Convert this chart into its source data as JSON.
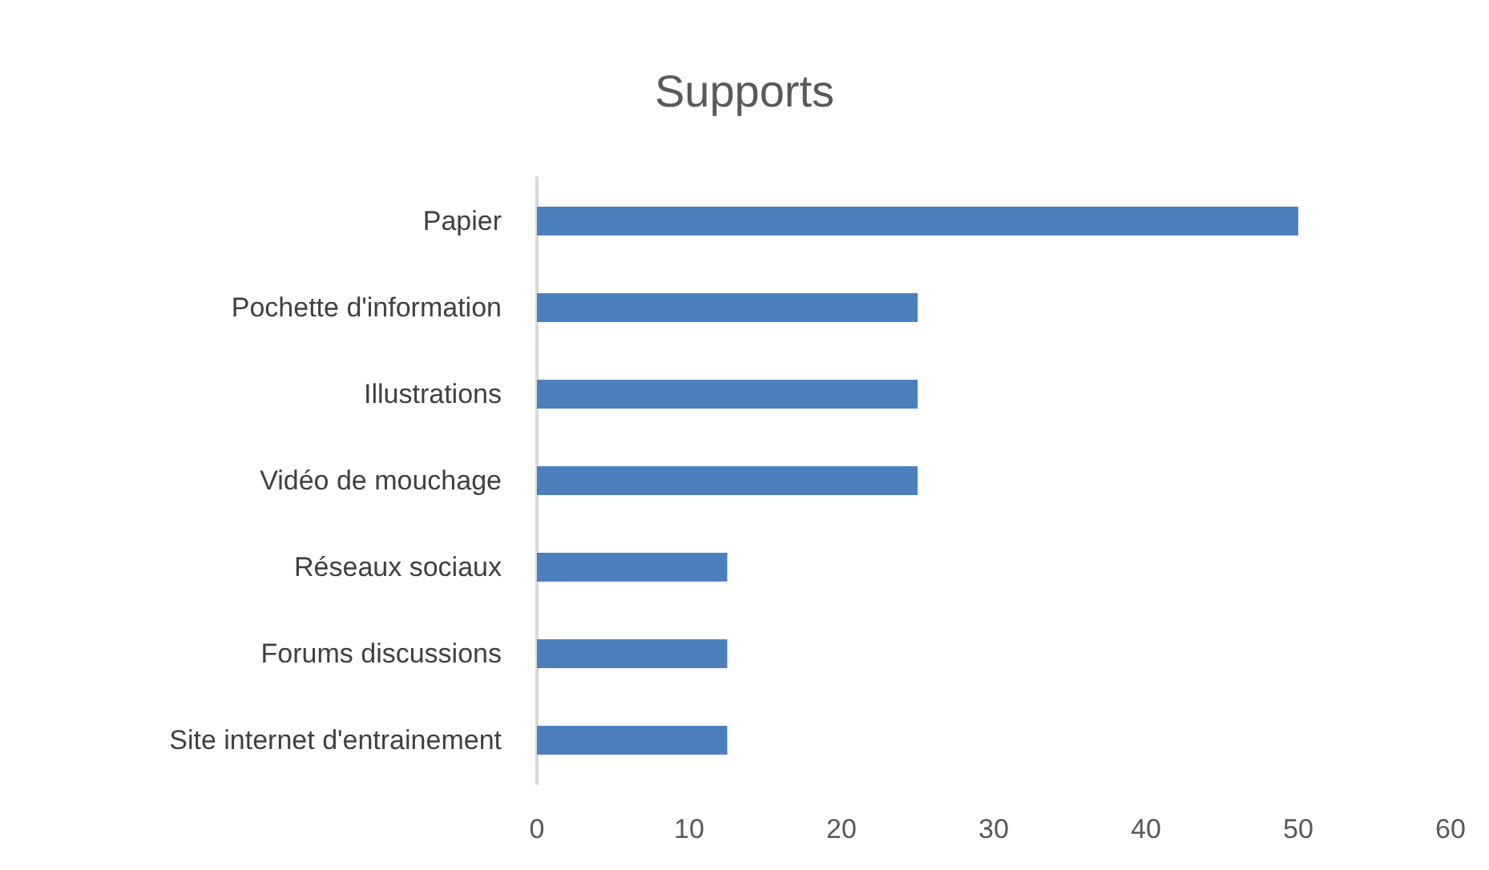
{
  "chart_data": {
    "type": "bar",
    "orientation": "horizontal",
    "title": "Supports",
    "categories": [
      "Papier",
      "Pochette d'information",
      "Illustrations",
      "Vidéo de mouchage",
      "Réseaux sociaux",
      "Forums discussions",
      "Site internet d'entrainement"
    ],
    "values": [
      50,
      25,
      25,
      25,
      12.5,
      12.5,
      12.5
    ],
    "color": "#4e7fbd",
    "xlim": [
      0,
      60
    ],
    "xticks": [
      0,
      10,
      20,
      30,
      40,
      50,
      60
    ],
    "grid": false
  }
}
